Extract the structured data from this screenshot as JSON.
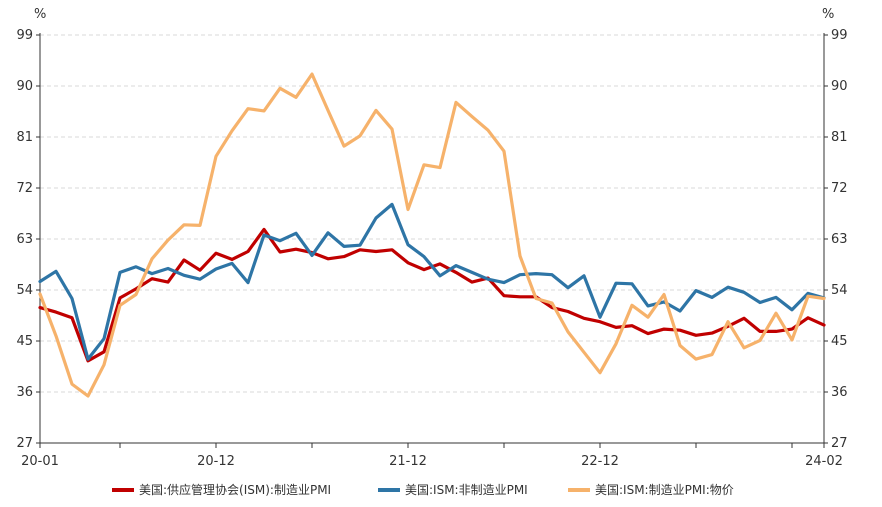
{
  "chart_data": {
    "type": "line",
    "title": "",
    "left_unit": "%",
    "right_unit": "%",
    "ylim": [
      27,
      99
    ],
    "y_ticks": [
      27,
      36,
      45,
      54,
      63,
      72,
      81,
      90,
      99
    ],
    "x_start_index": 0,
    "x_end_index": 49,
    "x_tick_labels": [
      {
        "index": 0,
        "label": "20-01"
      },
      {
        "index": 11,
        "label": "20-12"
      },
      {
        "index": 23,
        "label": "21-12"
      },
      {
        "index": 35,
        "label": "22-12"
      },
      {
        "index": 49,
        "label": "24-02"
      }
    ],
    "x_minor_tick_indices": [
      0,
      5,
      11,
      17,
      23,
      29,
      35,
      41,
      47,
      49
    ],
    "grid": "horizontal-dashed",
    "legend_position": "bottom",
    "series": [
      {
        "name": "美国:供应管理协会(ISM):制造业PMI",
        "color": "#c00000",
        "values": [
          50.9,
          50.1,
          49.1,
          41.5,
          43.1,
          52.6,
          54.2,
          56.0,
          55.4,
          59.3,
          57.5,
          60.5,
          59.4,
          60.8,
          64.7,
          60.7,
          61.2,
          60.6,
          59.5,
          59.9,
          61.1,
          60.8,
          61.1,
          58.8,
          57.6,
          58.6,
          57.1,
          55.4,
          56.1,
          53.0,
          52.8,
          52.8,
          50.9,
          50.2,
          49.0,
          48.4,
          47.4,
          47.7,
          46.3,
          47.1,
          46.9,
          46.0,
          46.4,
          47.6,
          49.0,
          46.7,
          46.7,
          47.1,
          49.1,
          47.8
        ]
      },
      {
        "name": "美国:ISM:非制造业PMI",
        "color": "#2e75a6",
        "values": [
          55.5,
          57.3,
          52.5,
          41.8,
          45.4,
          57.1,
          58.1,
          56.9,
          57.8,
          56.6,
          55.9,
          57.7,
          58.7,
          55.3,
          63.7,
          62.7,
          64.0,
          60.1,
          64.1,
          61.7,
          61.9,
          66.7,
          69.1,
          62.0,
          59.9,
          56.5,
          58.3,
          57.1,
          55.9,
          55.3,
          56.7,
          56.9,
          56.7,
          54.4,
          56.5,
          49.2,
          55.2,
          55.1,
          51.2,
          51.9,
          50.3,
          53.9,
          52.7,
          54.5,
          53.6,
          51.8,
          52.7,
          50.5,
          53.4,
          52.6
        ]
      },
      {
        "name": "美国:ISM:制造业PMI:物价",
        "color": "#f6b26b",
        "values": [
          53.3,
          45.9,
          37.4,
          35.3,
          40.8,
          51.3,
          53.2,
          59.5,
          62.8,
          65.5,
          65.4,
          77.6,
          82.1,
          86.0,
          85.6,
          89.6,
          88.0,
          92.1,
          85.7,
          79.4,
          81.2,
          85.7,
          82.4,
          68.2,
          76.1,
          75.6,
          87.1,
          84.6,
          82.2,
          78.5,
          60.0,
          52.5,
          51.7,
          46.6,
          43.0,
          39.4,
          44.5,
          51.3,
          49.2,
          53.2,
          44.2,
          41.8,
          42.6,
          48.4,
          43.8,
          45.1,
          49.9,
          45.2,
          52.9,
          52.5
        ]
      }
    ]
  }
}
